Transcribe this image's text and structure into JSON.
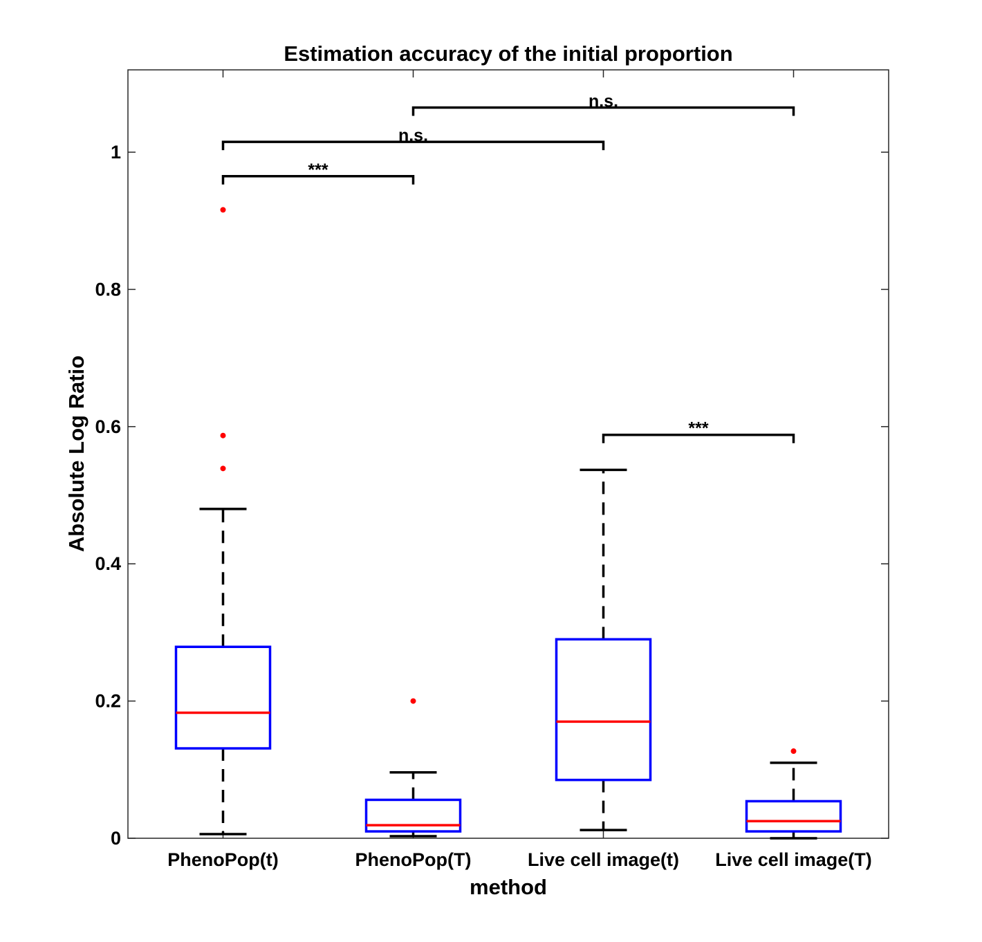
{
  "chart_data": {
    "type": "box",
    "title": "Estimation accuracy of the initial proportion",
    "xlabel": "method",
    "ylabel": "Absolute Log Ratio",
    "ylim": [
      0,
      1.12
    ],
    "yticks": [
      0,
      0.2,
      0.4,
      0.6,
      0.8,
      1
    ],
    "ytick_labels": [
      "0",
      "0.2",
      "0.4",
      "0.6",
      "0.8",
      "1"
    ],
    "grid": false,
    "categories": [
      "PhenoPop(t)",
      "PhenoPop(T)",
      "Live cell image(t)",
      "Live cell image(T)"
    ],
    "boxes": [
      {
        "category": "PhenoPop(t)",
        "whisker_low": 0.006,
        "q1": 0.131,
        "median": 0.183,
        "q3": 0.279,
        "whisker_high": 0.48,
        "outliers": [
          0.539,
          0.587,
          0.916
        ]
      },
      {
        "category": "PhenoPop(T)",
        "whisker_low": 0.003,
        "q1": 0.01,
        "median": 0.019,
        "q3": 0.056,
        "whisker_high": 0.096,
        "outliers": [
          0.2
        ]
      },
      {
        "category": "Live cell image(t)",
        "whisker_low": 0.012,
        "q1": 0.085,
        "median": 0.17,
        "q3": 0.29,
        "whisker_high": 0.537,
        "outliers": []
      },
      {
        "category": "Live cell image(T)",
        "whisker_low": 0.0,
        "q1": 0.01,
        "median": 0.025,
        "q3": 0.054,
        "whisker_high": 0.11,
        "outliers": [
          0.127
        ]
      }
    ],
    "significance": [
      {
        "from": 0,
        "to": 1,
        "y": 0.965,
        "label": "***"
      },
      {
        "from": 0,
        "to": 2,
        "y": 1.015,
        "label": "n.s."
      },
      {
        "from": 1,
        "to": 3,
        "y": 1.065,
        "label": "n.s."
      },
      {
        "from": 2,
        "to": 3,
        "y": 0.588,
        "label": "***"
      }
    ],
    "colors": {
      "box": "#0000ff",
      "median": "#ff0000",
      "whisker": "#000000",
      "outlier": "#ff0000",
      "significance": "#000000"
    }
  }
}
